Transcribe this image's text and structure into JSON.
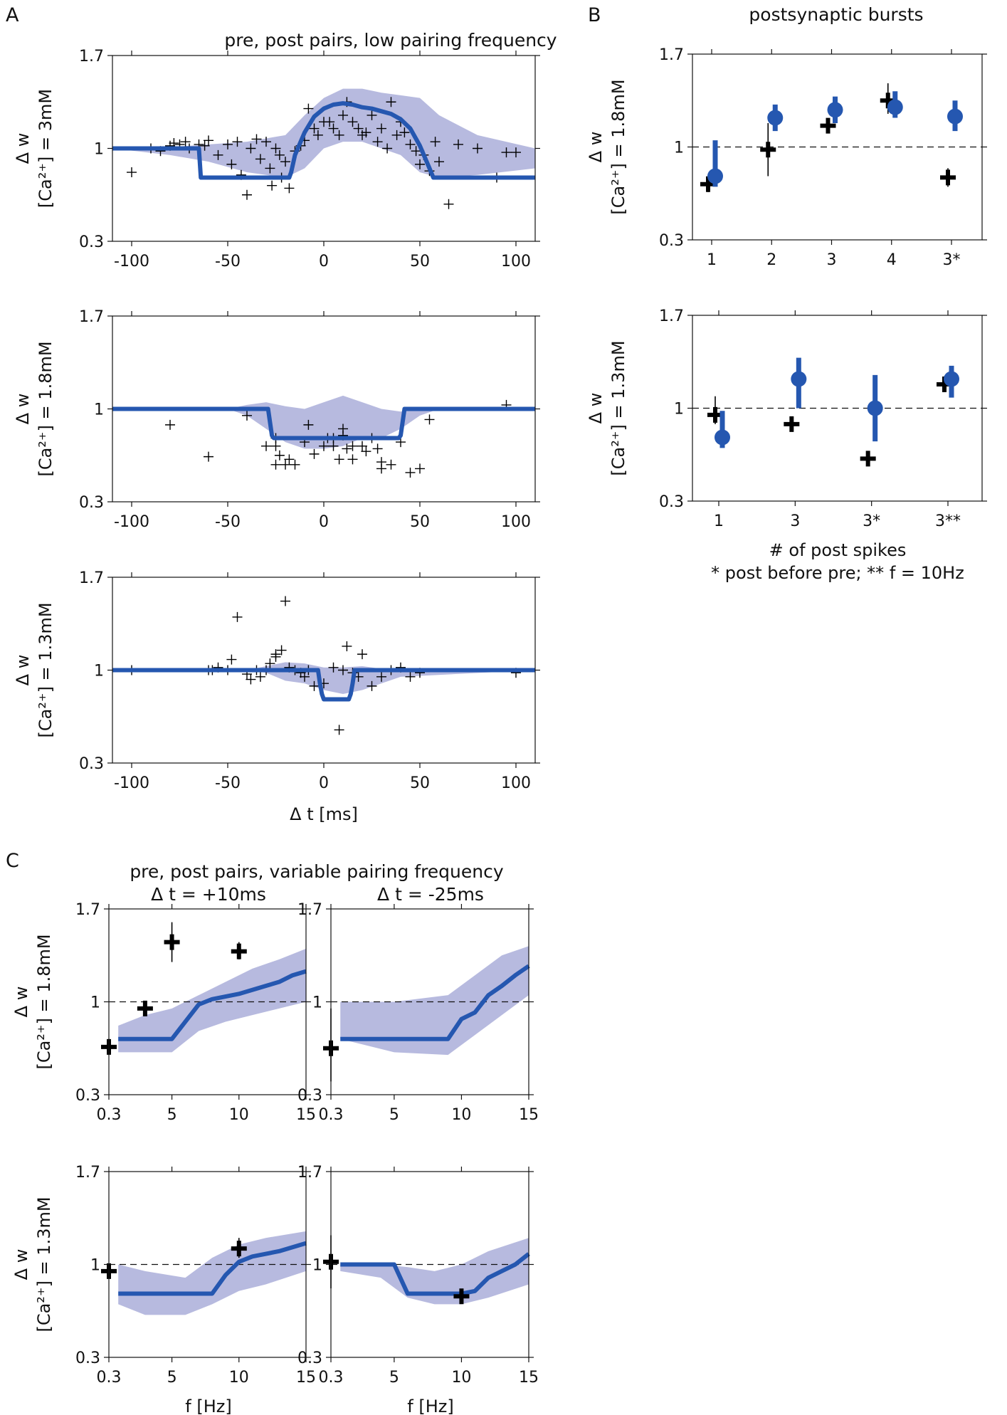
{
  "colors": {
    "model": "#2557b0",
    "band": "#b3b6dd",
    "exp": "#000000"
  },
  "panel_labels": [
    "A",
    "B",
    "C"
  ],
  "titles": {
    "A": "pre, post pairs, low pairing frequency",
    "B": "postsynaptic bursts",
    "C": "pre, post pairs, variable pairing frequency",
    "C_left": "Δ t = +10ms",
    "C_right": "Δ t = -25ms"
  },
  "xlabels": {
    "A": "Δ t [ms]",
    "B_1": "# of post spikes",
    "B_2": "* post before pre; ** f = 10Hz",
    "C": "f [Hz]"
  },
  "ylabels": {
    "dw": "Δ w",
    "ca_3": "[Ca²⁺] = 3mM",
    "ca_18": "[Ca²⁺] = 1.8mM",
    "ca_13": "[Ca²⁺] = 1.3mM"
  },
  "ticks": {
    "y": [
      "1.7",
      "1",
      "0.3"
    ],
    "A_x": [
      "-100",
      "-50",
      "0",
      "50",
      "100"
    ],
    "B1_x": [
      "1",
      "2",
      "3",
      "4",
      "3*"
    ],
    "B2_x": [
      "1",
      "3",
      "3*",
      "3**"
    ],
    "C_x": [
      "0.3",
      "5",
      "10",
      "15"
    ]
  },
  "chart_data": [
    {
      "id": "A1",
      "type": "line",
      "xlabel": "",
      "ylabel": "Δ w  [Ca²⁺] = 3mM",
      "xlim": [
        -110,
        110
      ],
      "ylim": [
        0.3,
        1.7
      ],
      "y_reference": 1,
      "model": {
        "x": [
          -110,
          -65,
          -64,
          -18,
          -17,
          -15,
          -10,
          -5,
          0,
          5,
          10,
          15,
          20,
          25,
          30,
          35,
          40,
          45,
          50,
          55,
          57,
          110
        ],
        "y": [
          1.0,
          1.0,
          0.78,
          0.78,
          0.82,
          0.95,
          1.12,
          1.24,
          1.3,
          1.33,
          1.34,
          1.33,
          1.31,
          1.3,
          1.28,
          1.26,
          1.22,
          1.15,
          1.02,
          0.85,
          0.78,
          0.78
        ]
      },
      "band": {
        "x": [
          -110,
          -80,
          -60,
          -40,
          -20,
          -10,
          0,
          10,
          20,
          30,
          40,
          50,
          60,
          80,
          110
        ],
        "upper": [
          1.0,
          1.01,
          1.03,
          1.05,
          1.1,
          1.25,
          1.38,
          1.45,
          1.45,
          1.42,
          1.4,
          1.38,
          1.25,
          1.1,
          1.0
        ],
        "lower": [
          1.0,
          0.95,
          0.9,
          0.82,
          0.78,
          0.85,
          1.0,
          1.05,
          1.05,
          1.0,
          0.95,
          0.82,
          0.78,
          0.8,
          0.85
        ]
      },
      "scatter": {
        "x": [
          -100,
          -90,
          -85,
          -80,
          -78,
          -75,
          -72,
          -70,
          -65,
          -62,
          -60,
          -55,
          -50,
          -48,
          -45,
          -43,
          -40,
          -38,
          -35,
          -33,
          -30,
          -28,
          -27,
          -25,
          -23,
          -22,
          -20,
          -18,
          -15,
          -12,
          -10,
          -8,
          -5,
          -3,
          0,
          3,
          5,
          8,
          10,
          12,
          15,
          18,
          20,
          22,
          25,
          28,
          30,
          33,
          35,
          38,
          40,
          42,
          45,
          48,
          50,
          52,
          55,
          58,
          60,
          65,
          70,
          80,
          90,
          95,
          100
        ],
        "y": [
          0.82,
          1.0,
          0.98,
          1.02,
          1.04,
          1.03,
          1.05,
          1.0,
          1.03,
          1.02,
          1.06,
          0.95,
          1.03,
          0.88,
          1.05,
          0.8,
          0.65,
          1.0,
          1.07,
          0.92,
          1.05,
          0.85,
          0.72,
          1.0,
          0.95,
          0.78,
          0.9,
          0.7,
          0.98,
          1.02,
          1.06,
          1.3,
          1.15,
          1.1,
          1.2,
          1.2,
          1.15,
          1.1,
          1.25,
          1.35,
          1.2,
          1.15,
          1.1,
          1.12,
          1.25,
          1.05,
          1.15,
          1.0,
          1.35,
          1.1,
          1.2,
          1.12,
          1.03,
          0.98,
          0.88,
          0.95,
          0.83,
          1.05,
          0.9,
          0.58,
          1.03,
          1.0,
          0.78,
          0.97,
          0.97
        ]
      }
    },
    {
      "id": "A2",
      "type": "line",
      "xlabel": "",
      "ylabel": "Δ w  [Ca²⁺] = 1.8mM",
      "xlim": [
        -110,
        110
      ],
      "ylim": [
        0.3,
        1.7
      ],
      "y_reference": 1,
      "model": {
        "x": [
          -110,
          -29,
          -28,
          -27,
          -26,
          39,
          40,
          41,
          42,
          110
        ],
        "y": [
          1.0,
          1.0,
          0.9,
          0.8,
          0.78,
          0.78,
          0.8,
          0.9,
          1.0,
          1.0
        ]
      },
      "band": {
        "x": [
          -110,
          -50,
          -40,
          -30,
          -20,
          -10,
          0,
          10,
          20,
          30,
          40,
          50,
          60,
          110
        ],
        "upper": [
          1.0,
          1.0,
          1.03,
          1.05,
          1.02,
          1.0,
          1.05,
          1.1,
          1.05,
          1.0,
          0.98,
          1.0,
          1.0,
          1.0
        ],
        "lower": [
          1.0,
          1.0,
          0.95,
          0.85,
          0.75,
          0.7,
          0.7,
          0.72,
          0.78,
          0.78,
          0.85,
          0.95,
          1.0,
          1.0
        ]
      },
      "scatter": {
        "x": [
          -80,
          -60,
          -40,
          -30,
          -25,
          -25,
          -23,
          -25,
          -20,
          -18,
          -15,
          -10,
          -8,
          -5,
          0,
          2,
          5,
          5,
          8,
          10,
          10,
          12,
          15,
          15,
          20,
          22,
          25,
          28,
          30,
          30,
          35,
          40,
          45,
          50,
          55,
          95
        ],
        "y": [
          0.88,
          0.64,
          0.95,
          0.72,
          0.78,
          0.72,
          0.65,
          0.58,
          0.58,
          0.62,
          0.58,
          0.75,
          0.88,
          0.66,
          0.72,
          0.78,
          0.78,
          0.72,
          0.62,
          0.8,
          0.85,
          0.7,
          0.72,
          0.62,
          0.72,
          0.68,
          0.78,
          0.7,
          0.55,
          0.6,
          0.58,
          0.75,
          0.52,
          0.55,
          0.92,
          1.03
        ]
      }
    },
    {
      "id": "A3",
      "type": "line",
      "xlabel": "Δ t [ms]",
      "ylabel": "Δ w  [Ca²⁺] = 1.3mM",
      "xlim": [
        -110,
        110
      ],
      "ylim": [
        0.3,
        1.7
      ],
      "y_reference": 1,
      "model": {
        "x": [
          -110,
          -3,
          -2,
          -1,
          0,
          13,
          14,
          15,
          16,
          110
        ],
        "y": [
          1.0,
          1.0,
          0.9,
          0.82,
          0.78,
          0.78,
          0.82,
          0.9,
          1.0,
          1.0
        ]
      },
      "band": {
        "x": [
          -110,
          -40,
          -30,
          -20,
          -10,
          0,
          10,
          20,
          30,
          40,
          110
        ],
        "upper": [
          1.0,
          1.0,
          1.03,
          1.06,
          1.05,
          1.02,
          1.02,
          1.03,
          1.01,
          1.0,
          1.0
        ],
        "lower": [
          1.0,
          1.0,
          0.98,
          0.92,
          0.9,
          0.85,
          0.82,
          0.85,
          0.9,
          0.95,
          1.0
        ]
      },
      "scatter": {
        "x": [
          -100,
          -60,
          -58,
          -55,
          -50,
          -48,
          -45,
          -40,
          -38,
          -35,
          -33,
          -30,
          -28,
          -25,
          -25,
          -22,
          -20,
          -18,
          -15,
          -12,
          -10,
          -8,
          -5,
          0,
          5,
          8,
          10,
          12,
          15,
          18,
          20,
          25,
          30,
          35,
          40,
          45,
          50,
          100
        ],
        "y": [
          1.0,
          1.0,
          1.0,
          1.02,
          1.0,
          1.08,
          1.4,
          0.97,
          0.93,
          1.0,
          0.95,
          1.0,
          1.05,
          1.1,
          1.12,
          1.15,
          1.52,
          1.02,
          1.0,
          0.98,
          0.95,
          1.0,
          0.88,
          0.9,
          1.02,
          0.55,
          1.0,
          1.18,
          0.98,
          0.95,
          1.12,
          0.88,
          0.95,
          1.0,
          1.02,
          0.95,
          0.98,
          0.98
        ]
      }
    },
    {
      "id": "B1",
      "type": "scatter",
      "xlabel": "",
      "ylabel": "Δ w  [Ca²⁺] = 1.8mM",
      "categories": [
        "1",
        "2",
        "3",
        "4",
        "3*"
      ],
      "ylim": [
        0.3,
        1.7
      ],
      "y_reference": 1,
      "model": {
        "values": [
          0.78,
          1.22,
          1.28,
          1.3,
          1.23
        ],
        "err_low": [
          0.7,
          1.12,
          1.18,
          1.22,
          1.12
        ],
        "err_high": [
          1.05,
          1.32,
          1.38,
          1.42,
          1.35
        ]
      },
      "experiment": {
        "values": [
          0.72,
          0.98,
          1.16,
          1.35,
          0.77
        ],
        "err_low": [
          0.66,
          0.78,
          1.12,
          1.25,
          0.7
        ],
        "err_high": [
          0.78,
          1.18,
          1.2,
          1.48,
          0.84
        ]
      }
    },
    {
      "id": "B2",
      "type": "scatter",
      "xlabel": "# of post spikes",
      "ylabel": "Δ w  [Ca²⁺] = 1.3mM",
      "categories": [
        "1",
        "3",
        "3*",
        "3**"
      ],
      "ylim": [
        0.3,
        1.7
      ],
      "y_reference": 1,
      "model": {
        "values": [
          0.78,
          1.22,
          1.0,
          1.22
        ],
        "err_low": [
          0.7,
          1.0,
          0.75,
          1.08
        ],
        "err_high": [
          0.98,
          1.38,
          1.25,
          1.32
        ]
      },
      "experiment": {
        "values": [
          0.95,
          0.88,
          0.62,
          1.18
        ],
        "err_low": [
          0.88,
          0.84,
          0.59,
          1.14
        ],
        "err_high": [
          1.09,
          0.92,
          0.65,
          1.24
        ]
      }
    },
    {
      "id": "C1",
      "type": "line",
      "xlabel": "",
      "ylabel": "Δ w  [Ca²⁺] = 1.8mM",
      "xlim": [
        0.3,
        15
      ],
      "ylim": [
        0.3,
        1.7
      ],
      "y_reference": 1,
      "model": {
        "x": [
          1,
          2,
          3,
          4,
          5,
          6,
          7,
          8,
          9,
          10,
          11,
          12,
          13,
          14,
          15
        ],
        "y": [
          0.72,
          0.72,
          0.72,
          0.72,
          0.72,
          0.85,
          0.98,
          1.02,
          1.04,
          1.06,
          1.09,
          1.12,
          1.15,
          1.2,
          1.23
        ]
      },
      "band": {
        "x": [
          1,
          3,
          5,
          7,
          9,
          11,
          13,
          15
        ],
        "upper": [
          0.82,
          0.9,
          0.95,
          1.05,
          1.15,
          1.25,
          1.32,
          1.4
        ],
        "lower": [
          0.62,
          0.62,
          0.62,
          0.78,
          0.85,
          0.9,
          0.95,
          1.0
        ]
      },
      "experiment": {
        "x": [
          0.3,
          3,
          5,
          10
        ],
        "values": [
          0.66,
          0.95,
          1.45,
          1.38
        ],
        "err_low": [
          0.6,
          0.9,
          1.3,
          1.32
        ],
        "err_high": [
          0.72,
          1.0,
          1.6,
          1.45
        ]
      }
    },
    {
      "id": "C2",
      "type": "line",
      "xlabel": "",
      "ylabel": "",
      "xlim": [
        0.3,
        15
      ],
      "ylim": [
        0.3,
        1.7
      ],
      "y_reference": 1,
      "model": {
        "x": [
          1,
          9,
          10,
          11,
          12,
          13,
          14,
          15
        ],
        "y": [
          0.72,
          0.72,
          0.87,
          0.92,
          1.05,
          1.12,
          1.2,
          1.27
        ]
      },
      "band": {
        "x": [
          1,
          5,
          9,
          11,
          13,
          15
        ],
        "upper": [
          1.0,
          1.0,
          1.05,
          1.2,
          1.35,
          1.42
        ],
        "lower": [
          0.72,
          0.62,
          0.6,
          0.75,
          0.9,
          1.05
        ]
      },
      "experiment": {
        "x": [
          0.3
        ],
        "values": [
          0.65
        ],
        "err_low": [
          0.4
        ],
        "err_high": [
          0.95
        ]
      }
    },
    {
      "id": "C3",
      "type": "line",
      "xlabel": "f [Hz]",
      "ylabel": "Δ w  [Ca²⁺] = 1.3mM",
      "xlim": [
        0.3,
        15
      ],
      "ylim": [
        0.3,
        1.7
      ],
      "y_reference": 1,
      "model": {
        "x": [
          1,
          8,
          9,
          10,
          11,
          13,
          15
        ],
        "y": [
          0.78,
          0.78,
          0.92,
          1.02,
          1.06,
          1.1,
          1.16
        ]
      },
      "band": {
        "x": [
          1,
          3,
          6,
          8,
          10,
          12,
          15
        ],
        "upper": [
          1.0,
          0.95,
          0.9,
          1.05,
          1.15,
          1.2,
          1.25
        ],
        "lower": [
          0.7,
          0.62,
          0.62,
          0.7,
          0.8,
          0.85,
          0.95
        ]
      },
      "experiment": {
        "x": [
          0.3,
          10
        ],
        "values": [
          0.95,
          1.12
        ],
        "err_low": [
          0.9,
          1.05
        ],
        "err_high": [
          1.0,
          1.2
        ]
      }
    },
    {
      "id": "C4",
      "type": "line",
      "xlabel": "f [Hz]",
      "ylabel": "",
      "xlim": [
        0.3,
        15
      ],
      "ylim": [
        0.3,
        1.7
      ],
      "y_reference": 1,
      "model": {
        "x": [
          1,
          5,
          6,
          10,
          11,
          12,
          13,
          14,
          15
        ],
        "y": [
          1.0,
          1.0,
          0.78,
          0.78,
          0.8,
          0.9,
          0.95,
          1.0,
          1.08
        ]
      },
      "band": {
        "x": [
          1,
          4,
          6,
          8,
          10,
          12,
          15
        ],
        "upper": [
          1.0,
          1.0,
          0.98,
          0.95,
          1.0,
          1.1,
          1.2
        ],
        "lower": [
          0.95,
          0.9,
          0.75,
          0.7,
          0.7,
          0.75,
          0.85
        ]
      },
      "experiment": {
        "x": [
          0.3,
          10
        ],
        "values": [
          1.02,
          0.76
        ],
        "err_low": [
          0.82,
          0.74
        ],
        "err_high": [
          1.22,
          0.8
        ]
      }
    }
  ]
}
